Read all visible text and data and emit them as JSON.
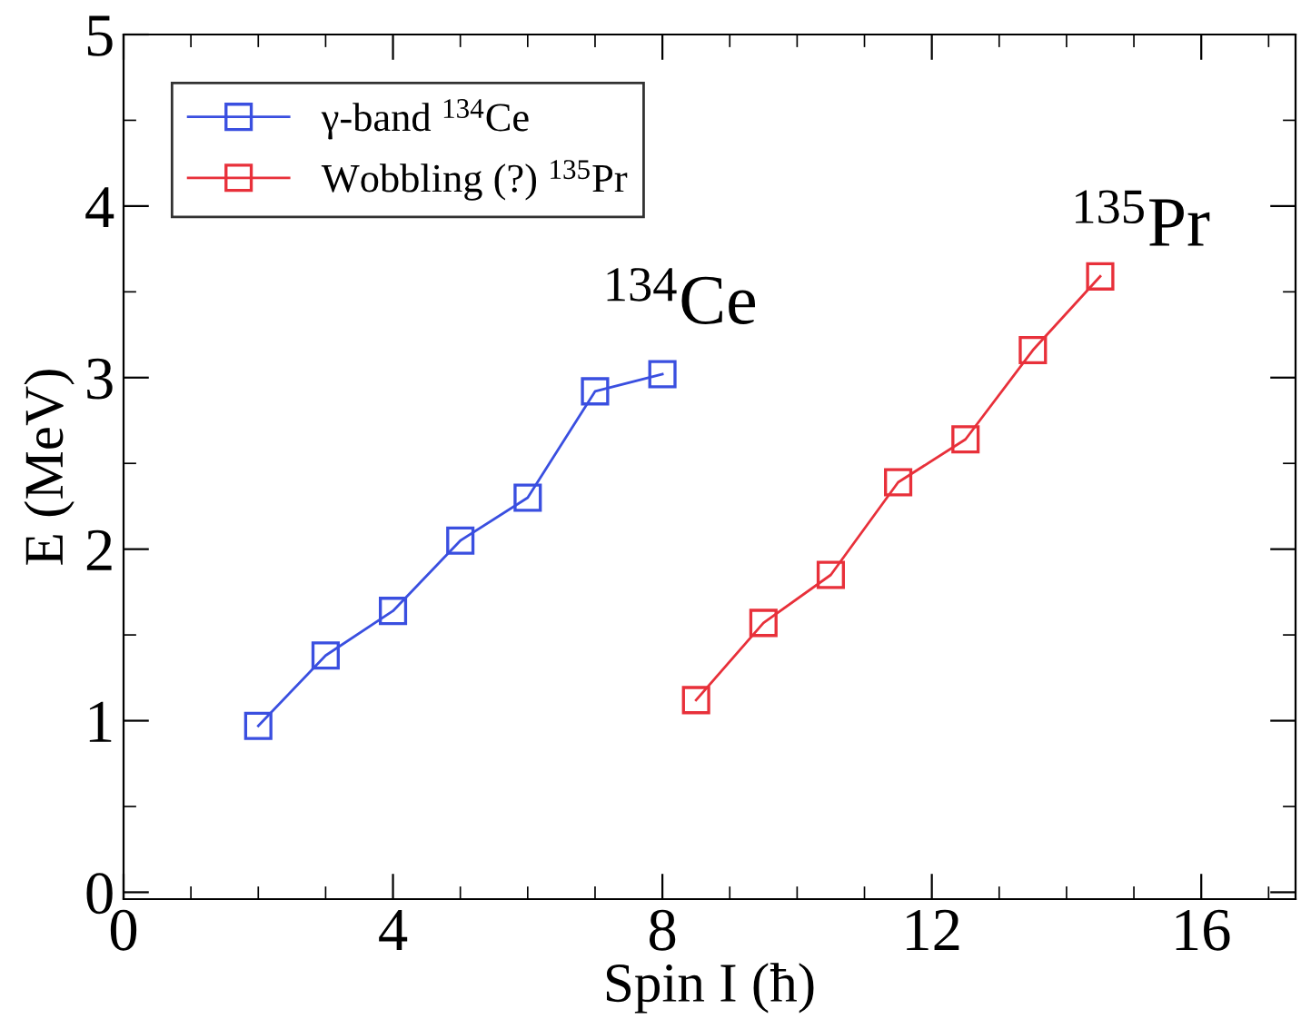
{
  "chart_data": {
    "type": "line",
    "xlabel": "Spin I (ħ)",
    "ylabel": "E (MeV)",
    "series": [
      {
        "name": "γ-band $^{134}$Ce",
        "color": "#3a4fe0",
        "x": [
          2,
          3,
          4,
          5,
          6,
          7,
          8
        ],
        "values": [
          0.97,
          1.38,
          1.64,
          2.05,
          2.3,
          2.92,
          3.02
        ]
      },
      {
        "name": "Wobbling (?) $^{135}$Pr",
        "color": "#e8303a",
        "x": [
          8.5,
          9.5,
          10.5,
          11.5,
          12.5,
          13.5,
          14.5
        ],
        "values": [
          1.12,
          1.57,
          1.85,
          2.39,
          2.64,
          3.16,
          3.59
        ]
      }
    ],
    "annotations": [
      "$^{134}$Ce",
      "$^{135}$Pr"
    ],
    "xlim": [
      0,
      17.4
    ],
    "xticks": [
      0,
      4,
      8,
      12,
      16
    ],
    "ylim": [
      -0.04,
      5
    ],
    "yticks": [
      0,
      1,
      2,
      3,
      4,
      5
    ],
    "marker": "square",
    "line_style": "solid",
    "legend": "top left",
    "grid": false
  }
}
